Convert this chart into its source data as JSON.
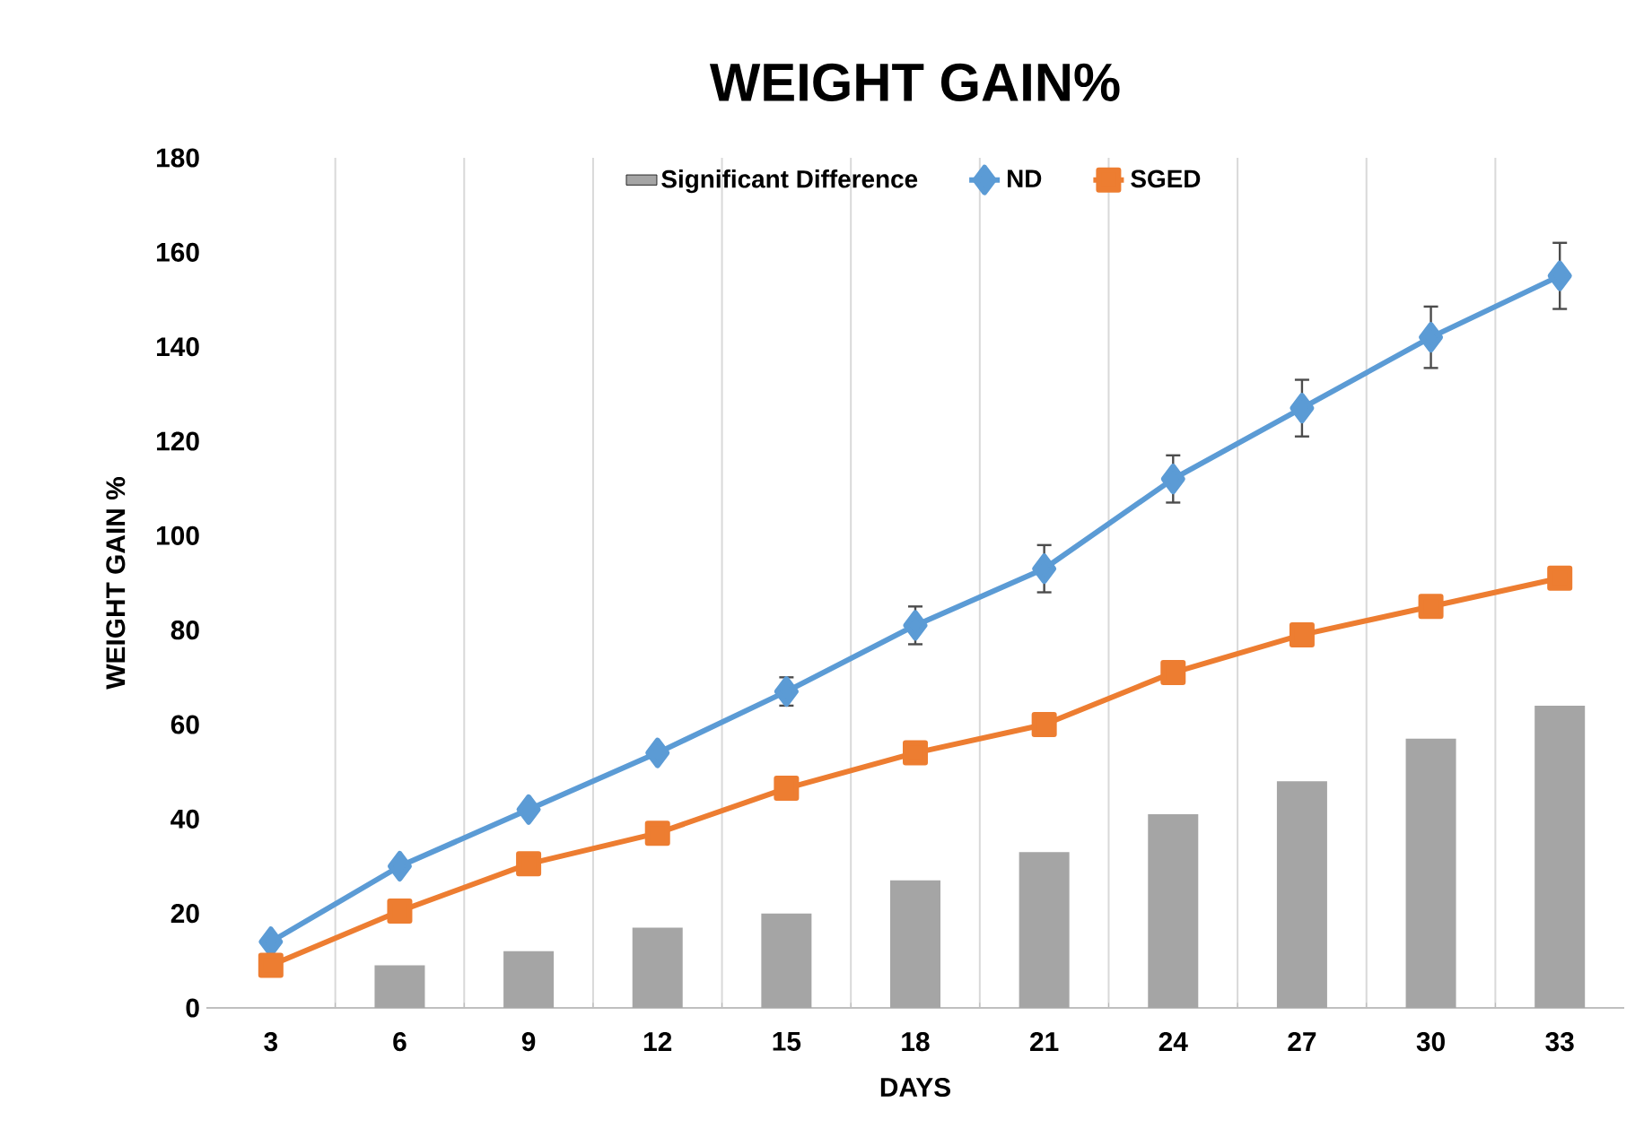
{
  "chart_data": {
    "type": "line",
    "title": "WEIGHT GAIN%",
    "xlabel": "DAYS",
    "ylabel": "WEIGHT GAIN %",
    "categories": [
      "3",
      "6",
      "9",
      "12",
      "15",
      "18",
      "21",
      "24",
      "27",
      "30",
      "33"
    ],
    "series": [
      {
        "name": "Significant Difference",
        "type": "bar",
        "color": "#a5a5a5",
        "values": [
          null,
          9,
          12,
          17,
          20,
          27,
          33,
          41,
          48,
          57,
          64
        ]
      },
      {
        "name": "ND",
        "marker": "diamond",
        "color": "#5b9bd5",
        "values": [
          14,
          30,
          42,
          54,
          67,
          81,
          93,
          112,
          127,
          142,
          155
        ],
        "errors": [
          null,
          null,
          null,
          null,
          3,
          4,
          5,
          5,
          6,
          6.5,
          7
        ]
      },
      {
        "name": "SGED",
        "marker": "square",
        "color": "#ed7d31",
        "values": [
          9,
          20.5,
          30.5,
          37,
          46.5,
          54,
          60,
          71,
          79,
          85,
          91
        ]
      }
    ],
    "ylim": [
      0,
      180
    ],
    "yticks": [
      0,
      20,
      40,
      60,
      80,
      100,
      120,
      140,
      160,
      180
    ],
    "grid": "x",
    "legend": "top"
  }
}
